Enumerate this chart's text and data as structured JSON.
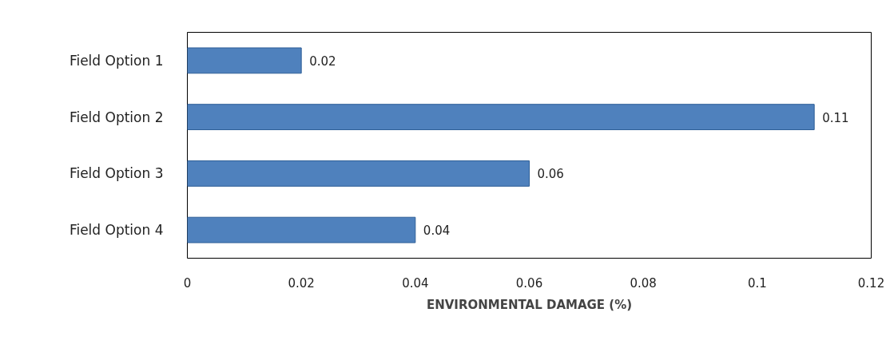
{
  "chart_data": {
    "type": "bar",
    "orientation": "horizontal",
    "xlabel": "ENVIRONMENTAL DAMAGE (%)",
    "categories": [
      "Field Option 1",
      "Field Option 2",
      "Field Option 3",
      "Field Option 4"
    ],
    "values": [
      0.02,
      0.11,
      0.06,
      0.04
    ],
    "color": "#4f81bd",
    "xlim": [
      0,
      0.12
    ],
    "xticks": [
      0,
      0.02,
      0.04,
      0.06,
      0.08,
      0.1,
      0.12
    ],
    "data_labels": true,
    "grid": false
  }
}
